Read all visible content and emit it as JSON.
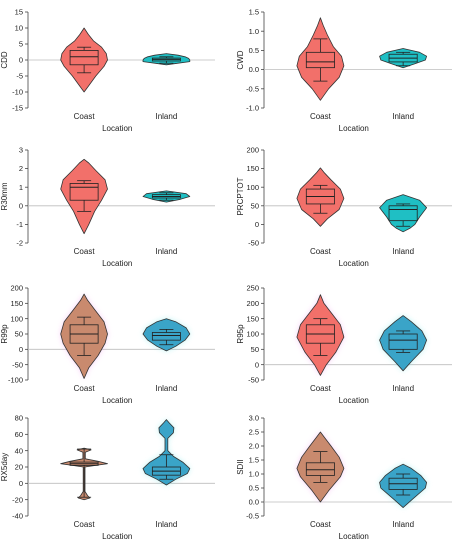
{
  "colors": {
    "coast": "#f2706a",
    "coast_alt": "#c98a6e",
    "inland": "#1fbfc4",
    "inland_alt": "#3aa4c8",
    "glow": "#f4a6f0",
    "glow2": "#7fe9ea",
    "outline": "#333333",
    "refline": "#bdbdbd"
  },
  "chart_data": [
    {
      "type": "violin",
      "ylabel": "CDD",
      "xlabel": "Location",
      "categories": [
        "Coast",
        "Inland"
      ],
      "ylim": [
        -15,
        15
      ],
      "yticks": [
        -15,
        -10,
        -5,
        0,
        5,
        10,
        15
      ],
      "refline": 0,
      "series": [
        {
          "name": "Coast",
          "color": "coast",
          "violin": [
            [
              -10,
              0
            ],
            [
              -8,
              0.2
            ],
            [
              -5,
              0.5
            ],
            [
              -2,
              0.85
            ],
            [
              0,
              1
            ],
            [
              2,
              0.95
            ],
            [
              4,
              0.75
            ],
            [
              6,
              0.4
            ],
            [
              8,
              0.18
            ],
            [
              10,
              0
            ]
          ],
          "box": {
            "whisker_low": -4,
            "q1": -1.5,
            "median": 1,
            "q3": 3,
            "whisker_high": 4
          }
        },
        {
          "name": "Inland",
          "color": "inland",
          "violin": [
            [
              -1.5,
              0
            ],
            [
              -1,
              0.5
            ],
            [
              -0.5,
              1
            ],
            [
              0,
              1
            ],
            [
              0.5,
              0.95
            ],
            [
              1,
              0.8
            ],
            [
              1.5,
              0.5
            ],
            [
              2,
              0
            ]
          ],
          "box": {
            "whisker_low": -1,
            "q1": -0.3,
            "median": 0.2,
            "q3": 0.6,
            "whisker_high": 1
          }
        }
      ]
    },
    {
      "type": "violin",
      "ylabel": "CWD",
      "xlabel": "Location",
      "categories": [
        "Coast",
        "Inland"
      ],
      "ylim": [
        -1.0,
        1.5
      ],
      "yticks": [
        -1.0,
        -0.5,
        0.0,
        0.5,
        1.0,
        1.5
      ],
      "tick_decimals": 1,
      "refline": 0,
      "series": [
        {
          "name": "Coast",
          "color": "coast",
          "violin": [
            [
              -0.8,
              0
            ],
            [
              -0.5,
              0.35
            ],
            [
              -0.2,
              0.8
            ],
            [
              0.1,
              1
            ],
            [
              0.35,
              0.9
            ],
            [
              0.6,
              0.55
            ],
            [
              0.9,
              0.3
            ],
            [
              1.15,
              0.12
            ],
            [
              1.35,
              0
            ]
          ],
          "box": {
            "whisker_low": -0.3,
            "q1": 0.05,
            "median": 0.2,
            "q3": 0.45,
            "whisker_high": 0.8
          }
        },
        {
          "name": "Inland",
          "color": "inland",
          "violin": [
            [
              0.05,
              0
            ],
            [
              0.15,
              0.5
            ],
            [
              0.25,
              0.95
            ],
            [
              0.35,
              1
            ],
            [
              0.45,
              0.7
            ],
            [
              0.55,
              0
            ]
          ],
          "box": {
            "whisker_low": 0.1,
            "q1": 0.2,
            "median": 0.3,
            "q3": 0.4,
            "whisker_high": 0.45
          }
        }
      ]
    },
    {
      "type": "violin",
      "ylabel": "R30mm",
      "xlabel": "Location",
      "categories": [
        "Coast",
        "Inland"
      ],
      "ylim": [
        -2,
        3
      ],
      "yticks": [
        -2,
        -1,
        0,
        1,
        2,
        3
      ],
      "refline": 0,
      "series": [
        {
          "name": "Coast",
          "color": "coast",
          "violin": [
            [
              -1.5,
              0
            ],
            [
              -1,
              0.2
            ],
            [
              -0.3,
              0.45
            ],
            [
              0.3,
              0.75
            ],
            [
              0.9,
              1
            ],
            [
              1.4,
              0.9
            ],
            [
              1.9,
              0.5
            ],
            [
              2.3,
              0.2
            ],
            [
              2.5,
              0
            ]
          ],
          "box": {
            "whisker_low": -0.3,
            "q1": 0.3,
            "median": 1,
            "q3": 1.2,
            "whisker_high": 1.35
          }
        },
        {
          "name": "Inland",
          "color": "inland",
          "violin": [
            [
              0.2,
              0
            ],
            [
              0.35,
              0.6
            ],
            [
              0.5,
              1
            ],
            [
              0.65,
              0.85
            ],
            [
              0.8,
              0
            ]
          ],
          "box": {
            "whisker_low": 0.3,
            "q1": 0.42,
            "median": 0.5,
            "q3": 0.6,
            "whisker_high": 0.7
          }
        }
      ]
    },
    {
      "type": "violin",
      "ylabel": "PRCPTOT",
      "xlabel": "Location",
      "categories": [
        "Coast",
        "Inland"
      ],
      "ylim": [
        -50,
        200
      ],
      "yticks": [
        -50,
        0,
        50,
        100,
        150,
        200
      ],
      "refline": 50,
      "series": [
        {
          "name": "Coast",
          "color": "coast",
          "violin": [
            [
              -5,
              0
            ],
            [
              15,
              0.3
            ],
            [
              40,
              0.8
            ],
            [
              70,
              1
            ],
            [
              95,
              0.85
            ],
            [
              120,
              0.45
            ],
            [
              140,
              0.15
            ],
            [
              152,
              0
            ]
          ],
          "box": {
            "whisker_low": 30,
            "q1": 55,
            "median": 75,
            "q3": 95,
            "whisker_high": 105
          }
        },
        {
          "name": "Inland",
          "color": "inland",
          "violin": [
            [
              -20,
              0
            ],
            [
              -10,
              0.3
            ],
            [
              0,
              0.5
            ],
            [
              20,
              0.7
            ],
            [
              45,
              1
            ],
            [
              65,
              0.7
            ],
            [
              80,
              0
            ]
          ],
          "box": {
            "whisker_low": -5,
            "q1": 10,
            "median": 40,
            "q3": 50,
            "whisker_high": 55
          }
        }
      ]
    },
    {
      "type": "violin",
      "ylabel": "R99p",
      "xlabel": "Location",
      "categories": [
        "Coast",
        "Inland"
      ],
      "ylim": [
        -100,
        200
      ],
      "yticks": [
        -100,
        -50,
        0,
        50,
        100,
        150,
        200
      ],
      "refline": 0,
      "series": [
        {
          "name": "Coast",
          "color": "coast_alt",
          "glow": true,
          "violin": [
            [
              -95,
              0
            ],
            [
              -60,
              0.2
            ],
            [
              -20,
              0.6
            ],
            [
              20,
              0.9
            ],
            [
              50,
              1
            ],
            [
              90,
              0.85
            ],
            [
              130,
              0.45
            ],
            [
              160,
              0.15
            ],
            [
              180,
              0
            ]
          ],
          "box": {
            "whisker_low": -20,
            "q1": 20,
            "median": 50,
            "q3": 80,
            "whisker_high": 105
          }
        },
        {
          "name": "Inland",
          "color": "inland_alt",
          "glow": true,
          "violin": [
            [
              -5,
              0
            ],
            [
              10,
              0.4
            ],
            [
              30,
              0.8
            ],
            [
              50,
              1
            ],
            [
              70,
              0.85
            ],
            [
              90,
              0.4
            ],
            [
              100,
              0
            ]
          ],
          "box": {
            "whisker_low": 15,
            "q1": 30,
            "median": 45,
            "q3": 55,
            "whisker_high": 65
          }
        }
      ]
    },
    {
      "type": "violin",
      "ylabel": "R95p",
      "xlabel": "Location",
      "categories": [
        "Coast",
        "Inland"
      ],
      "ylim": [
        -50,
        250
      ],
      "yticks": [
        -50,
        0,
        50,
        100,
        150,
        200,
        250
      ],
      "refline": 0,
      "series": [
        {
          "name": "Coast",
          "color": "coast",
          "glow": true,
          "violin": [
            [
              -35,
              0
            ],
            [
              0,
              0.25
            ],
            [
              40,
              0.65
            ],
            [
              90,
              1
            ],
            [
              130,
              0.85
            ],
            [
              170,
              0.45
            ],
            [
              200,
              0.15
            ],
            [
              228,
              0
            ]
          ],
          "box": {
            "whisker_low": 30,
            "q1": 70,
            "median": 100,
            "q3": 130,
            "whisker_high": 150
          }
        },
        {
          "name": "Inland",
          "color": "inland_alt",
          "glow": true,
          "violin": [
            [
              -20,
              0
            ],
            [
              10,
              0.35
            ],
            [
              50,
              0.85
            ],
            [
              80,
              1
            ],
            [
              110,
              0.8
            ],
            [
              140,
              0.35
            ],
            [
              160,
              0
            ]
          ],
          "box": {
            "whisker_low": 40,
            "q1": 50,
            "median": 80,
            "q3": 100,
            "whisker_high": 110
          }
        }
      ]
    },
    {
      "type": "violin",
      "ylabel": "RX5day",
      "xlabel": "Location",
      "categories": [
        "Coast",
        "Inland"
      ],
      "ylim": [
        -40,
        80
      ],
      "yticks": [
        -40,
        -20,
        0,
        20,
        40,
        60,
        80
      ],
      "refline": 0,
      "series": [
        {
          "name": "Coast",
          "color": "coast_alt",
          "violin": [
            [
              -20,
              0
            ],
            [
              -18,
              0.25
            ],
            [
              -15,
              0.15
            ],
            [
              -10,
              0.04
            ],
            [
              20,
              0.04
            ],
            [
              22,
              0.5
            ],
            [
              24,
              1
            ],
            [
              27,
              0.6
            ],
            [
              30,
              0.05
            ],
            [
              38,
              0.05
            ],
            [
              41,
              0.3
            ],
            [
              43,
              0
            ]
          ],
          "box": {
            "whisker_low": -17,
            "q1": 22,
            "median": 24,
            "q3": 26,
            "whisker_high": 42
          }
        },
        {
          "name": "Inland",
          "color": "inland_alt",
          "glow": true,
          "violin": [
            [
              -2,
              0
            ],
            [
              5,
              0.4
            ],
            [
              12,
              0.9
            ],
            [
              18,
              1
            ],
            [
              26,
              0.7
            ],
            [
              33,
              0.3
            ],
            [
              40,
              0.06
            ],
            [
              55,
              0.06
            ],
            [
              62,
              0.3
            ],
            [
              68,
              0.32
            ],
            [
              74,
              0.12
            ],
            [
              78,
              0
            ]
          ],
          "box": {
            "whisker_low": 5,
            "q1": 10,
            "median": 15,
            "q3": 20,
            "whisker_high": 35
          }
        }
      ]
    },
    {
      "type": "violin",
      "ylabel": "SDII",
      "xlabel": "Location",
      "categories": [
        "Coast",
        "Inland"
      ],
      "ylim": [
        -0.5,
        3.0
      ],
      "yticks": [
        -0.5,
        0.0,
        0.5,
        1.0,
        1.5,
        2.0,
        2.5,
        3.0
      ],
      "tick_decimals": 1,
      "refline": 0,
      "series": [
        {
          "name": "Coast",
          "color": "coast_alt",
          "glow": true,
          "violin": [
            [
              0,
              0
            ],
            [
              0.4,
              0.35
            ],
            [
              0.9,
              0.85
            ],
            [
              1.2,
              1
            ],
            [
              1.6,
              0.8
            ],
            [
              2.0,
              0.45
            ],
            [
              2.3,
              0.18
            ],
            [
              2.5,
              0
            ]
          ],
          "box": {
            "whisker_low": 0.7,
            "q1": 0.95,
            "median": 1.15,
            "q3": 1.4,
            "whisker_high": 1.8
          }
        },
        {
          "name": "Inland",
          "color": "inland_alt",
          "glow": true,
          "violin": [
            [
              -0.2,
              0
            ],
            [
              0.1,
              0.4
            ],
            [
              0.5,
              0.95
            ],
            [
              0.7,
              1
            ],
            [
              0.95,
              0.75
            ],
            [
              1.2,
              0.35
            ],
            [
              1.35,
              0
            ]
          ],
          "box": {
            "whisker_low": 0.25,
            "q1": 0.45,
            "median": 0.65,
            "q3": 0.85,
            "whisker_high": 1.0
          }
        }
      ]
    }
  ]
}
